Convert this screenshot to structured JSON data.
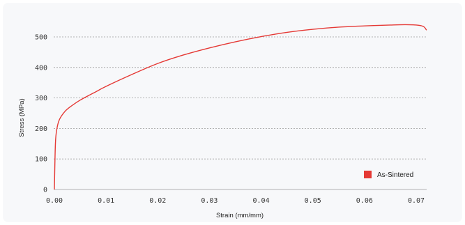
{
  "chart_data": {
    "type": "line",
    "title": "",
    "xlabel": "Strain (mm/mm)",
    "ylabel": "Stress (MPa)",
    "xlim": [
      0,
      0.072
    ],
    "ylim": [
      0,
      550
    ],
    "x_ticks": [
      "0.00",
      "0.01",
      "0.02",
      "0.03",
      "0.04",
      "0.05",
      "0.06",
      "0.07"
    ],
    "x_tick_values": [
      0,
      0.01,
      0.02,
      0.03,
      0.04,
      0.05,
      0.06,
      0.07
    ],
    "y_ticks": [
      "0",
      "100",
      "200",
      "300",
      "400",
      "500"
    ],
    "y_tick_values": [
      0,
      100,
      200,
      300,
      400,
      500
    ],
    "grid": "horizontal dashed",
    "legend_position": "bottom-right",
    "series": [
      {
        "name": "As-Sintered",
        "color": "#e53935",
        "x": [
          0,
          0.0002,
          0.0005,
          0.001,
          0.002,
          0.003,
          0.005,
          0.008,
          0.01,
          0.015,
          0.02,
          0.025,
          0.03,
          0.035,
          0.04,
          0.045,
          0.05,
          0.055,
          0.06,
          0.065,
          0.068,
          0.0705,
          0.0715,
          0.072
        ],
        "y": [
          0,
          150,
          200,
          230,
          255,
          270,
          293,
          320,
          338,
          377,
          413,
          441,
          464,
          484,
          501,
          515,
          525,
          532,
          536,
          539,
          540,
          538,
          533,
          522
        ]
      }
    ]
  }
}
